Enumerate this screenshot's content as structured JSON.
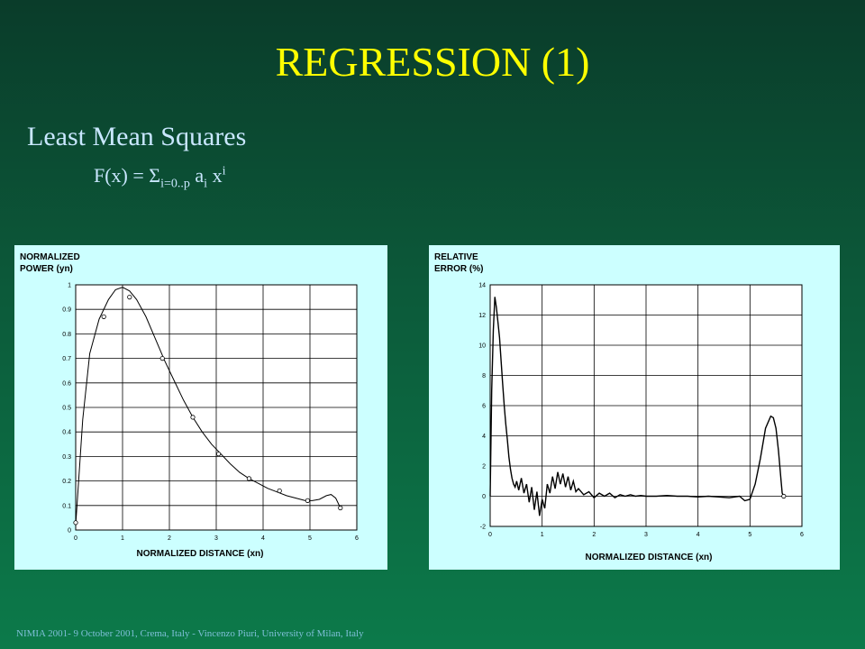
{
  "slide": {
    "title": "REGRESSION (1)",
    "heading": "Least Mean Squares",
    "formula": {
      "lhs": "F(x) = Σ",
      "sub": "i=0..p",
      "coef": " a",
      "coef_sub": "i",
      "var": " x",
      "var_sup": "i"
    },
    "footer": "NIMIA 2001- 9 October 2001, Crema, Italy - Vincenzo Piuri, University of Milan, Italy"
  },
  "chart_data": [
    {
      "type": "line",
      "ylabel_lines": [
        "NORMALIZED",
        "POWER (yn)"
      ],
      "xlabel": "NORMALIZED DISTANCE (xn)",
      "xlim": [
        0,
        6
      ],
      "ylim": [
        0,
        1
      ],
      "xticks": [
        "0",
        "1",
        "2",
        "3",
        "4",
        "5",
        "6"
      ],
      "yticks": [
        "0",
        "0.1",
        "0.2",
        "0.3",
        "0.4",
        "0.5",
        "0.6",
        "0.7",
        "0.8",
        "0.9",
        "1"
      ],
      "grid": true,
      "series": [
        {
          "x": [
            0,
            0.15,
            0.3,
            0.5,
            0.7,
            0.85,
            1.0,
            1.15,
            1.3,
            1.5,
            1.7,
            1.9,
            2.1,
            2.3,
            2.5,
            2.7,
            2.9,
            3.1,
            3.3,
            3.5,
            3.7,
            3.9,
            4.1,
            4.3,
            4.5,
            4.7,
            4.9,
            5.05,
            5.2,
            5.35,
            5.45,
            5.55,
            5.65
          ],
          "y": [
            0.02,
            0.45,
            0.72,
            0.86,
            0.94,
            0.98,
            0.99,
            0.975,
            0.94,
            0.87,
            0.78,
            0.69,
            0.61,
            0.53,
            0.46,
            0.4,
            0.35,
            0.31,
            0.27,
            0.235,
            0.21,
            0.19,
            0.17,
            0.155,
            0.14,
            0.13,
            0.12,
            0.12,
            0.125,
            0.14,
            0.145,
            0.13,
            0.09
          ]
        }
      ],
      "markers": {
        "x": [
          0,
          0.6,
          1.15,
          1.85,
          2.5,
          3.05,
          3.7,
          4.35,
          4.95,
          5.65
        ],
        "y": [
          0.03,
          0.87,
          0.95,
          0.7,
          0.46,
          0.31,
          0.21,
          0.16,
          0.12,
          0.09
        ]
      }
    },
    {
      "type": "line",
      "ylabel_lines": [
        "RELATIVE",
        "ERROR (%)"
      ],
      "xlabel": "NORMALIZED DISTANCE (xn)",
      "xlim": [
        0,
        6
      ],
      "ylim": [
        -2,
        14
      ],
      "xticks": [
        "0",
        "1",
        "2",
        "3",
        "4",
        "5",
        "6"
      ],
      "yticks": [
        "-2",
        "0",
        "2",
        "4",
        "6",
        "8",
        "10",
        "12",
        "14"
      ],
      "grid": true,
      "series": [
        {
          "x": [
            0,
            0.03,
            0.06,
            0.09,
            0.12,
            0.15,
            0.18,
            0.21,
            0.24,
            0.27,
            0.3,
            0.33,
            0.36,
            0.39,
            0.42,
            0.45,
            0.48,
            0.51,
            0.55,
            0.6,
            0.65,
            0.7,
            0.75,
            0.8,
            0.85,
            0.9,
            0.95,
            1.0,
            1.05,
            1.1,
            1.15,
            1.2,
            1.25,
            1.3,
            1.35,
            1.4,
            1.45,
            1.5,
            1.55,
            1.6,
            1.65,
            1.7,
            1.8,
            1.9,
            2.0,
            2.1,
            2.2,
            2.3,
            2.4,
            2.5,
            2.6,
            2.7,
            2.8,
            2.9,
            3.0,
            3.2,
            3.4,
            3.6,
            3.8,
            4.0,
            4.2,
            4.4,
            4.6,
            4.8,
            4.9,
            5.0,
            5.1,
            5.2,
            5.3,
            5.4,
            5.45,
            5.5,
            5.55,
            5.6,
            5.62,
            5.65
          ],
          "y": [
            0,
            7,
            11,
            13.2,
            12.5,
            11.5,
            10.5,
            9,
            7.5,
            6,
            4.8,
            3.8,
            2.6,
            1.8,
            1.2,
            0.8,
            0.6,
            1.0,
            0.4,
            1.2,
            0.2,
            0.8,
            -0.4,
            0.6,
            -0.9,
            0.3,
            -1.3,
            -0.2,
            -0.8,
            0.8,
            0.2,
            1.3,
            0.5,
            1.6,
            0.8,
            1.5,
            0.6,
            1.3,
            0.4,
            1.0,
            0.3,
            0.5,
            0.1,
            0.3,
            -0.1,
            0.2,
            0,
            0.2,
            -0.1,
            0.1,
            0,
            0.1,
            0,
            0.05,
            0,
            0,
            0.05,
            0,
            0,
            -0.05,
            0,
            -0.05,
            -0.1,
            0,
            -0.3,
            -0.2,
            0.8,
            2.5,
            4.5,
            5.3,
            5.2,
            4.5,
            3,
            1,
            0.2,
            0
          ]
        }
      ],
      "markers": {
        "x": [
          5.65
        ],
        "y": [
          0
        ]
      }
    }
  ]
}
